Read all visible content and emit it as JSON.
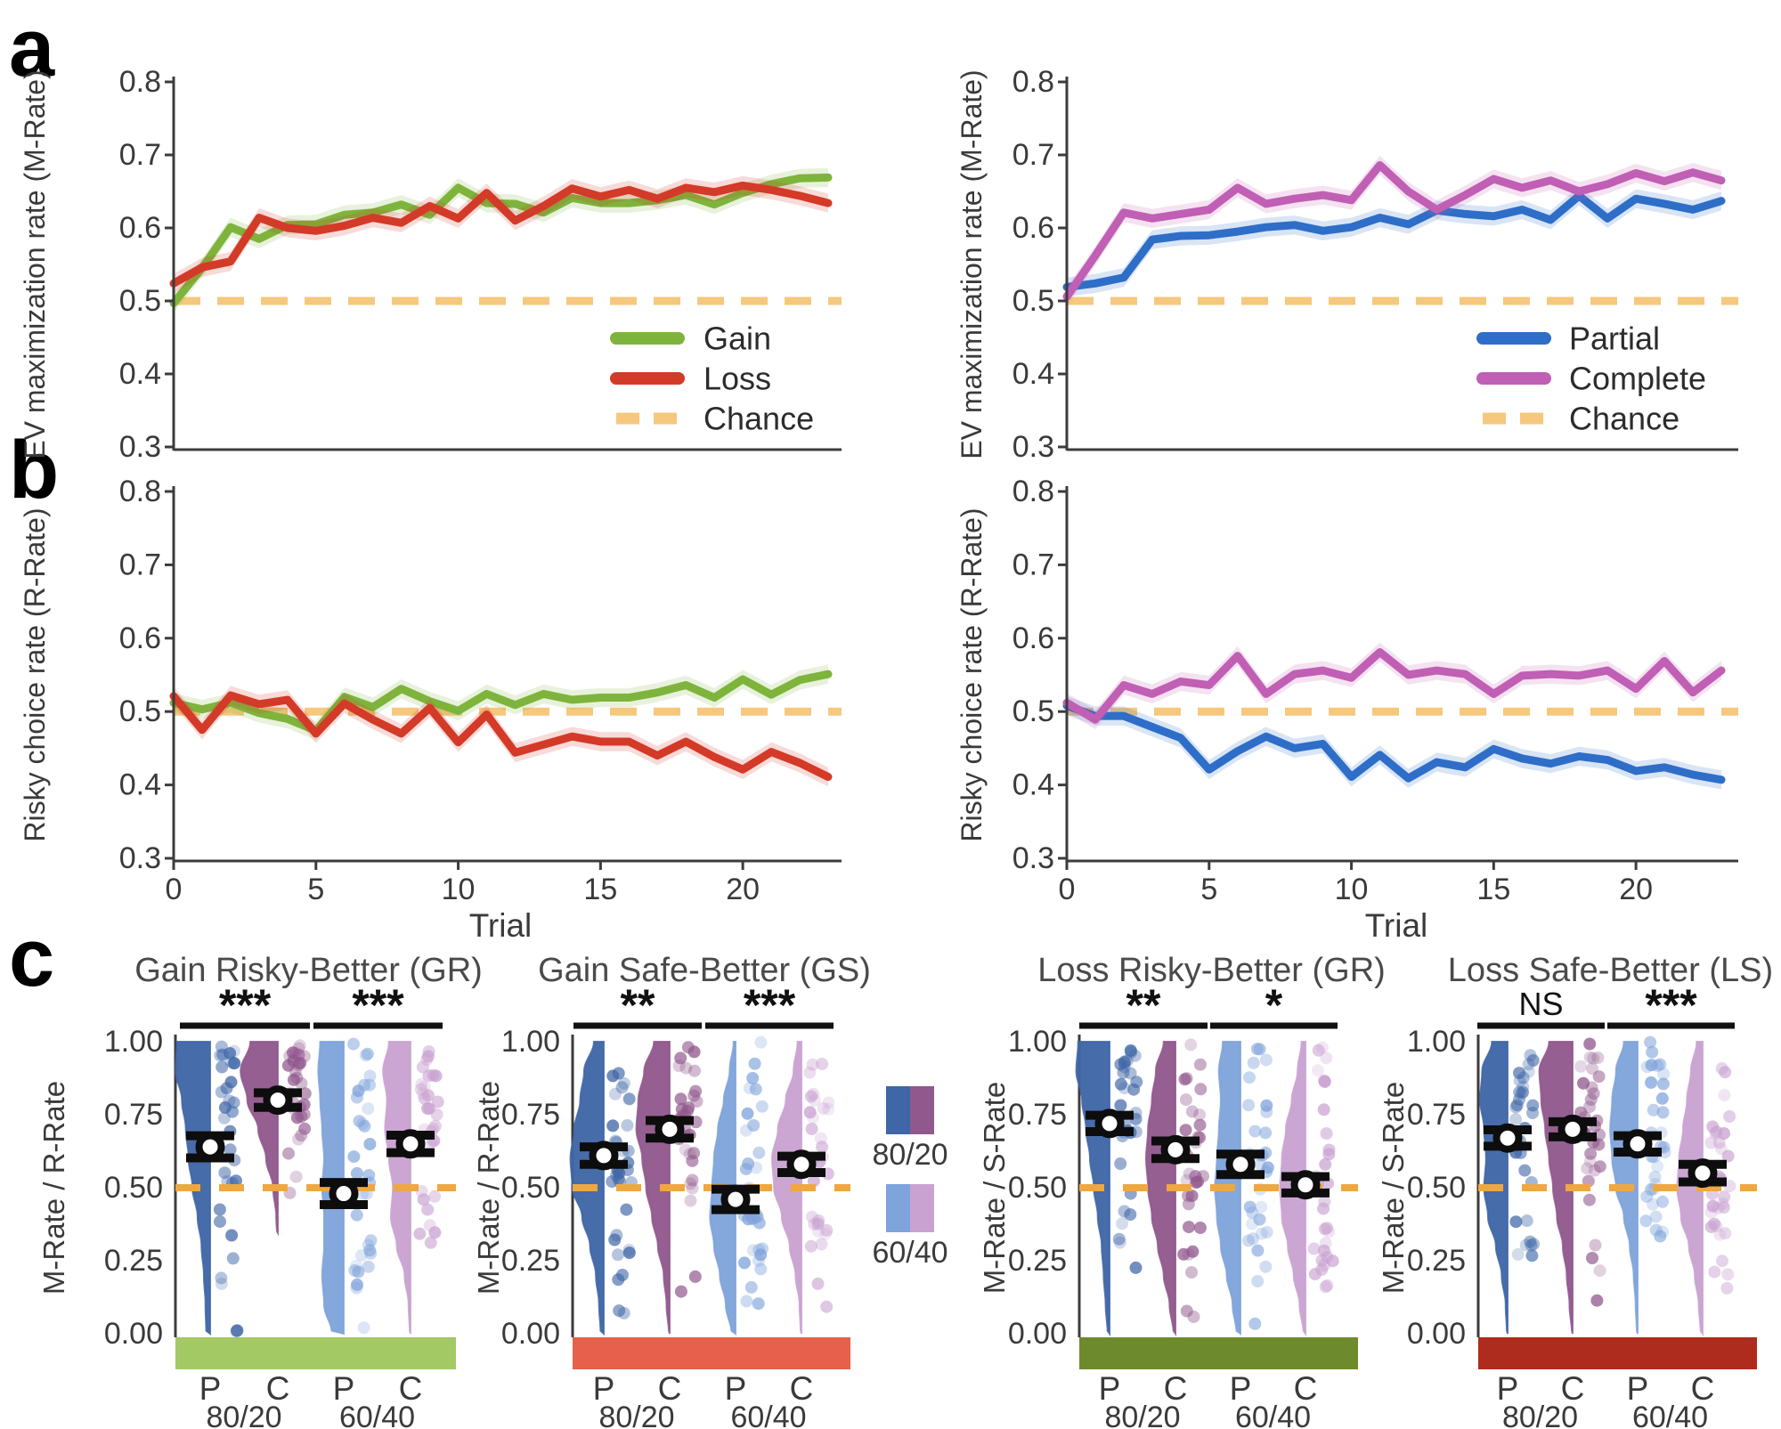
{
  "figure": {
    "panel_labels": {
      "a": "a",
      "b": "b",
      "c": "c"
    },
    "colors": {
      "gain": "#7eb43c",
      "loss": "#d43a28",
      "chance": "#f6c87e",
      "chance_c": "#f0a73f",
      "partial": "#2e6ec8",
      "complete": "#c05fb4",
      "p80": "#3f66a7",
      "c80": "#91588d",
      "p60": "#7fa3db",
      "c60": "#c9a2d1",
      "bar_gr": "#a3c964",
      "bar_gs": "#e6604b",
      "bar_lr": "#6d8b2d",
      "bar_ls": "#ae2c1e",
      "axis": "#3c3c3c",
      "text": "#3a3a3a",
      "title": "#4a4a4a",
      "marker": "#0d0d0d"
    }
  },
  "chart_data": [
    {
      "id": "a_left",
      "type": "line",
      "ylabel": "EV maximization rate (M-Rate)",
      "ylim": [
        0.3,
        0.8
      ],
      "yticks": [
        "0.8",
        "0.7",
        "0.6",
        "0.5",
        "0.4",
        "0.3"
      ],
      "x_range": [
        0,
        23
      ],
      "chance": 0.5,
      "series": [
        {
          "name": "Gain",
          "color_key": "gain",
          "values": [
            0.497,
            0.545,
            0.601,
            0.585,
            0.604,
            0.605,
            0.618,
            0.621,
            0.632,
            0.618,
            0.655,
            0.634,
            0.633,
            0.621,
            0.641,
            0.634,
            0.634,
            0.638,
            0.645,
            0.632,
            0.648,
            0.66,
            0.668,
            0.669
          ]
        },
        {
          "name": "Loss",
          "color_key": "loss",
          "values": [
            0.524,
            0.546,
            0.554,
            0.614,
            0.6,
            0.596,
            0.603,
            0.614,
            0.607,
            0.63,
            0.613,
            0.648,
            0.61,
            0.63,
            0.654,
            0.643,
            0.652,
            0.64,
            0.655,
            0.649,
            0.658,
            0.652,
            0.644,
            0.634
          ]
        }
      ],
      "legend": [
        {
          "label": "Gain",
          "color_key": "gain",
          "dashed": false
        },
        {
          "label": "Loss",
          "color_key": "loss",
          "dashed": false
        },
        {
          "label": "Chance",
          "color_key": "chance",
          "dashed": true
        }
      ]
    },
    {
      "id": "a_right",
      "type": "line",
      "ylabel": "EV maximization rate (M-Rate)",
      "ylim": [
        0.3,
        0.8
      ],
      "yticks": [
        "0.8",
        "0.7",
        "0.6",
        "0.5",
        "0.4",
        "0.3"
      ],
      "x_range": [
        0,
        23
      ],
      "chance": 0.5,
      "series": [
        {
          "name": "Partial",
          "color_key": "partial",
          "values": [
            0.519,
            0.524,
            0.532,
            0.584,
            0.589,
            0.59,
            0.595,
            0.601,
            0.604,
            0.596,
            0.601,
            0.614,
            0.605,
            0.624,
            0.619,
            0.616,
            0.625,
            0.611,
            0.644,
            0.613,
            0.64,
            0.633,
            0.625,
            0.637
          ]
        },
        {
          "name": "Complete",
          "color_key": "complete",
          "values": [
            0.506,
            0.562,
            0.621,
            0.613,
            0.619,
            0.625,
            0.655,
            0.633,
            0.64,
            0.645,
            0.638,
            0.686,
            0.65,
            0.625,
            0.645,
            0.667,
            0.655,
            0.665,
            0.65,
            0.66,
            0.675,
            0.664,
            0.676,
            0.665
          ]
        }
      ],
      "legend": [
        {
          "label": "Partial",
          "color_key": "partial",
          "dashed": false
        },
        {
          "label": "Complete",
          "color_key": "complete",
          "dashed": false
        },
        {
          "label": "Chance",
          "color_key": "chance",
          "dashed": true
        }
      ]
    },
    {
      "id": "b_left",
      "type": "line",
      "ylabel": "Risky choice rate (R-Rate)",
      "xlabel": "Trial",
      "ylim": [
        0.3,
        0.8
      ],
      "yticks": [
        "0.8",
        "0.7",
        "0.6",
        "0.5",
        "0.4",
        "0.3"
      ],
      "xticks": [
        "0",
        "5",
        "10",
        "15",
        "20"
      ],
      "x_range": [
        0,
        23
      ],
      "chance": 0.5,
      "series": [
        {
          "name": "Gain",
          "color_key": "gain",
          "values": [
            0.512,
            0.503,
            0.512,
            0.498,
            0.49,
            0.474,
            0.52,
            0.506,
            0.531,
            0.514,
            0.501,
            0.524,
            0.509,
            0.524,
            0.516,
            0.519,
            0.519,
            0.526,
            0.536,
            0.519,
            0.544,
            0.523,
            0.543,
            0.551
          ]
        },
        {
          "name": "Loss",
          "color_key": "loss",
          "values": [
            0.521,
            0.475,
            0.522,
            0.51,
            0.516,
            0.47,
            0.511,
            0.489,
            0.47,
            0.505,
            0.458,
            0.496,
            0.444,
            0.455,
            0.466,
            0.459,
            0.459,
            0.44,
            0.459,
            0.438,
            0.421,
            0.445,
            0.43,
            0.411
          ]
        }
      ]
    },
    {
      "id": "b_right",
      "type": "line",
      "ylabel": "Risky choice rate (R-Rate)",
      "xlabel": "Trial",
      "ylim": [
        0.3,
        0.8
      ],
      "yticks": [
        "0.8",
        "0.7",
        "0.6",
        "0.5",
        "0.4",
        "0.3"
      ],
      "xticks": [
        "0",
        "5",
        "10",
        "15",
        "20"
      ],
      "x_range": [
        0,
        23
      ],
      "chance": 0.5,
      "series": [
        {
          "name": "Partial",
          "color_key": "partial",
          "values": [
            0.508,
            0.494,
            0.494,
            0.479,
            0.464,
            0.421,
            0.446,
            0.466,
            0.45,
            0.456,
            0.411,
            0.441,
            0.409,
            0.431,
            0.424,
            0.449,
            0.436,
            0.429,
            0.439,
            0.434,
            0.419,
            0.424,
            0.414,
            0.407
          ]
        },
        {
          "name": "Complete",
          "color_key": "complete",
          "values": [
            0.512,
            0.489,
            0.536,
            0.524,
            0.541,
            0.536,
            0.576,
            0.524,
            0.551,
            0.556,
            0.546,
            0.581,
            0.55,
            0.556,
            0.551,
            0.524,
            0.549,
            0.551,
            0.549,
            0.556,
            0.531,
            0.569,
            0.526,
            0.556
          ]
        }
      ]
    },
    {
      "id": "c_row",
      "type": "raincloud",
      "chance": 0.5,
      "ylim": [
        0.0,
        1.0
      ],
      "yticks": [
        "1.00",
        "0.75",
        "0.50",
        "0.25",
        "0.00"
      ],
      "condition_labels": [
        "P",
        "C",
        "P",
        "C"
      ],
      "group_labels": [
        "80/20",
        "60/40"
      ],
      "legend": {
        "items": [
          {
            "label": "80/20",
            "left_key": "p80",
            "right_key": "c80"
          },
          {
            "label": "60/40",
            "left_key": "p60",
            "right_key": "c60"
          }
        ]
      },
      "subplots": [
        {
          "title": "Gain Risky-Better (GR)",
          "ylabel": "M-Rate / R-Rate",
          "bar_color_key": "bar_gr",
          "sig": [
            "***",
            "***"
          ],
          "violins": [
            {
              "label": "P 80/20",
              "color_key": "p80",
              "mean": 0.64,
              "se": 0.038,
              "density": [
                0.1,
                0.12,
                0.16,
                0.22,
                0.32,
                0.45,
                0.55,
                0.62,
                0.72,
                0.88,
                0.85
              ]
            },
            {
              "label": "C 80/20",
              "color_key": "c80",
              "mean": 0.8,
              "se": 0.025,
              "density": [
                0.0,
                0.0,
                0.0,
                0.0,
                0.04,
                0.12,
                0.3,
                0.5,
                0.78,
                0.95,
                0.7
              ]
            },
            {
              "label": "P 60/40",
              "color_key": "p60",
              "mean": 0.48,
              "se": 0.038,
              "density": [
                0.3,
                0.5,
                0.55,
                0.5,
                0.5,
                0.55,
                0.5,
                0.55,
                0.6,
                0.65,
                0.6
              ]
            },
            {
              "label": "C 60/40",
              "color_key": "c60",
              "mean": 0.65,
              "se": 0.03,
              "density": [
                0.02,
                0.05,
                0.15,
                0.35,
                0.5,
                0.45,
                0.55,
                0.65,
                0.6,
                0.7,
                0.55
              ]
            }
          ]
        },
        {
          "title": "Gain Safe-Better (GS)",
          "ylabel": "M-Rate / R-Rate",
          "bar_color_key": "bar_gs",
          "sig": [
            "**",
            "***"
          ],
          "violins": [
            {
              "label": "P 80/20",
              "color_key": "p80",
              "mean": 0.61,
              "se": 0.03,
              "density": [
                0.08,
                0.12,
                0.2,
                0.35,
                0.55,
                0.8,
                0.85,
                0.75,
                0.6,
                0.5,
                0.25
              ]
            },
            {
              "label": "C 80/20",
              "color_key": "c80",
              "mean": 0.7,
              "se": 0.03,
              "density": [
                0.02,
                0.08,
                0.15,
                0.3,
                0.45,
                0.6,
                0.7,
                0.85,
                0.8,
                0.65,
                0.4
              ]
            },
            {
              "label": "P 60/40",
              "color_key": "p60",
              "mean": 0.46,
              "se": 0.035,
              "density": [
                0.1,
                0.25,
                0.4,
                0.55,
                0.65,
                0.6,
                0.55,
                0.45,
                0.3,
                0.15,
                0.05
              ]
            },
            {
              "label": "C 60/40",
              "color_key": "c60",
              "mean": 0.58,
              "se": 0.028,
              "density": [
                0.02,
                0.05,
                0.15,
                0.3,
                0.5,
                0.7,
                0.75,
                0.6,
                0.4,
                0.2,
                0.1
              ]
            }
          ]
        },
        {
          "title": "Loss Risky-Better (GR)",
          "ylabel": "M-Rate / S-Rate",
          "bar_color_key": "bar_lr",
          "sig": [
            "**",
            "*"
          ],
          "violins": [
            {
              "label": "P 80/20",
              "color_key": "p80",
              "mean": 0.72,
              "se": 0.028,
              "density": [
                0.05,
                0.1,
                0.15,
                0.2,
                0.3,
                0.4,
                0.5,
                0.6,
                0.7,
                0.85,
                0.8
              ]
            },
            {
              "label": "C 80/20",
              "color_key": "c80",
              "mean": 0.63,
              "se": 0.03,
              "density": [
                0.05,
                0.15,
                0.3,
                0.45,
                0.6,
                0.7,
                0.75,
                0.7,
                0.6,
                0.5,
                0.3
              ]
            },
            {
              "label": "P 60/40",
              "color_key": "p60",
              "mean": 0.58,
              "se": 0.035,
              "density": [
                0.1,
                0.2,
                0.35,
                0.5,
                0.6,
                0.65,
                0.6,
                0.55,
                0.5,
                0.55,
                0.45
              ]
            },
            {
              "label": "C 60/40",
              "color_key": "c60",
              "mean": 0.51,
              "se": 0.028,
              "density": [
                0.05,
                0.15,
                0.3,
                0.45,
                0.6,
                0.65,
                0.6,
                0.5,
                0.35,
                0.2,
                0.1
              ]
            }
          ]
        },
        {
          "title": "Loss Safe-Better (LS)",
          "ylabel": "M-Rate / S-Rate",
          "bar_color_key": "bar_ls",
          "sig": [
            "NS",
            "***"
          ],
          "violins": [
            {
              "label": "P 80/20",
              "color_key": "p80",
              "mean": 0.67,
              "se": 0.028,
              "density": [
                0.02,
                0.05,
                0.15,
                0.3,
                0.5,
                0.6,
                0.55,
                0.6,
                0.7,
                0.65,
                0.4
              ]
            },
            {
              "label": "C 80/20",
              "color_key": "c80",
              "mean": 0.7,
              "se": 0.026,
              "density": [
                0.02,
                0.08,
                0.15,
                0.25,
                0.4,
                0.5,
                0.6,
                0.7,
                0.8,
                0.85,
                0.6
              ]
            },
            {
              "label": "P 60/40",
              "color_key": "p60",
              "mean": 0.65,
              "se": 0.028,
              "density": [
                0.02,
                0.05,
                0.1,
                0.2,
                0.35,
                0.55,
                0.65,
                0.7,
                0.65,
                0.55,
                0.35
              ]
            },
            {
              "label": "C 60/40",
              "color_key": "c60",
              "mean": 0.55,
              "se": 0.03,
              "density": [
                0.05,
                0.1,
                0.2,
                0.35,
                0.55,
                0.65,
                0.6,
                0.5,
                0.4,
                0.3,
                0.15
              ]
            }
          ]
        }
      ]
    }
  ]
}
